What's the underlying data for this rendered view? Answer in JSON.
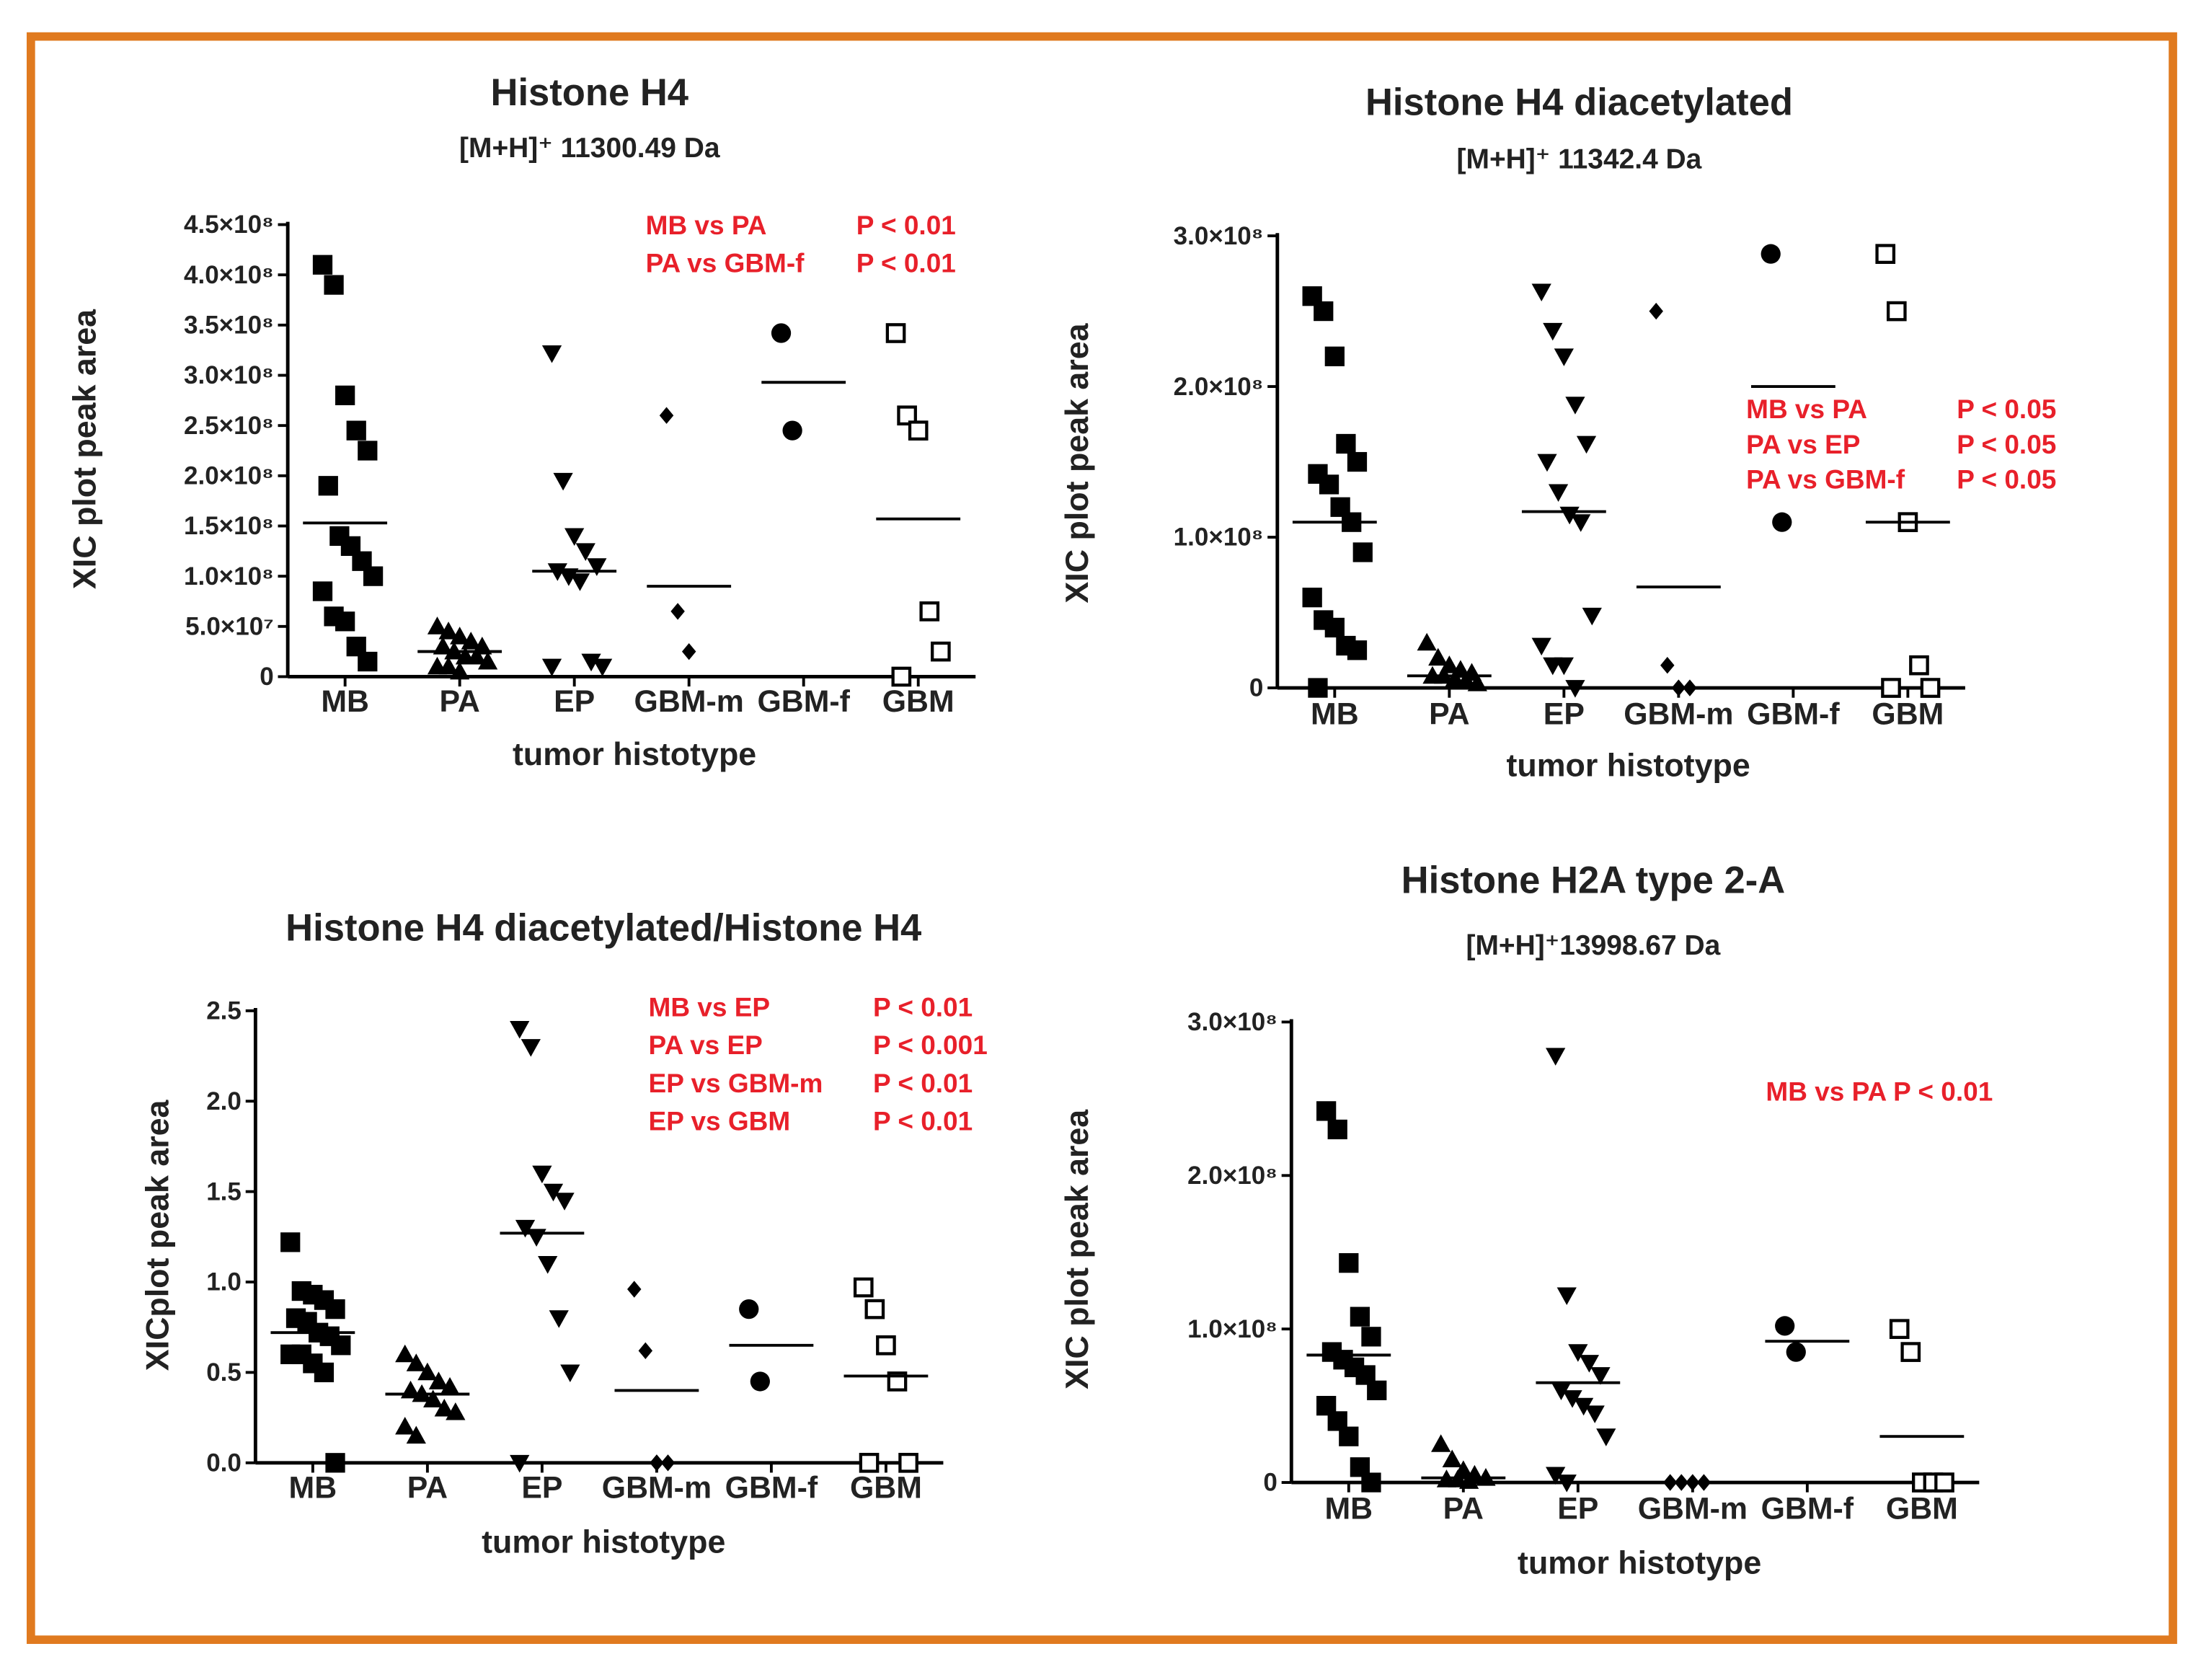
{
  "chart_data": [
    {
      "type": "strip",
      "title": "Histone H4",
      "subtitle": "[M+H]⁺ 11300.49 Da",
      "ylabel": "XIC plot peak area",
      "xlabel": "tumor histotype",
      "categories": [
        "MB",
        "PA",
        "EP",
        "GBM-m",
        "GBM-f",
        "GBM"
      ],
      "markers": [
        "square",
        "triangle",
        "triangle-down",
        "diamond",
        "circle",
        "open-square"
      ],
      "values": [
        [
          410000000.0,
          390000000.0,
          280000000.0,
          245000000.0,
          225000000.0,
          190000000.0,
          140000000.0,
          130000000.0,
          115000000.0,
          100000000.0,
          85000000.0,
          60000000.0,
          55000000.0,
          30000000.0,
          15000000.0
        ],
        [
          50000000.0,
          45000000.0,
          40000000.0,
          35000000.0,
          30000000.0,
          30000000.0,
          25000000.0,
          20000000.0,
          20000000.0,
          15000000.0,
          10000000.0,
          10000000.0,
          5000000.0
        ],
        [
          322000000.0,
          195000000.0,
          140000000.0,
          125000000.0,
          110000000.0,
          105000000.0,
          100000000.0,
          95000000.0,
          15000000.0,
          10000000.0,
          10000000.0
        ],
        [
          260000000.0,
          65000000.0,
          25000000.0
        ],
        [
          342000000.0,
          245000000.0
        ],
        [
          342000000.0,
          260000000.0,
          245000000.0,
          65000000.0,
          25000000.0,
          0
        ]
      ],
      "means": [
        153000000.0,
        25000000.0,
        105000000.0,
        90000000.0,
        293000000.0,
        157000000.0
      ],
      "ylim": [
        0,
        450000000.0
      ],
      "yticks": [
        0,
        {
          "value": 50000000.0,
          "label": "5.0×10⁷"
        },
        {
          "value": 100000000.0,
          "label": "1.0×10⁸"
        },
        {
          "value": 150000000.0,
          "label": "1.5×10⁸"
        },
        {
          "value": 200000000.0,
          "label": "2.0×10⁸"
        },
        {
          "value": 250000000.0,
          "label": "2.5×10⁸"
        },
        {
          "value": 300000000.0,
          "label": "3.0×10⁸"
        },
        {
          "value": 350000000.0,
          "label": "3.5×10⁸"
        },
        {
          "value": 400000000.0,
          "label": "4.0×10⁸"
        },
        {
          "value": 450000000.0,
          "label": "4.5×10⁸"
        }
      ],
      "annotations": [
        [
          "MB vs PA",
          "P < 0.01"
        ],
        [
          "PA vs GBM-f",
          "P < 0.01"
        ]
      ]
    },
    {
      "type": "strip",
      "title": "Histone H4 diacetylated",
      "subtitle": "[M+H]⁺ 11342.4  Da",
      "ylabel": "XIC plot peak area",
      "xlabel": "tumor histotype",
      "categories": [
        "MB",
        "PA",
        "EP",
        "GBM-m",
        "GBM-f",
        "GBM"
      ],
      "markers": [
        "square",
        "triangle",
        "triangle-down",
        "diamond",
        "circle",
        "open-square"
      ],
      "values": [
        [
          260000000.0,
          250000000.0,
          220000000.0,
          162000000.0,
          150000000.0,
          142000000.0,
          135000000.0,
          120000000.0,
          110000000.0,
          90000000.0,
          60000000.0,
          45000000.0,
          40000000.0,
          28000000.0,
          25000000.0,
          0
        ],
        [
          30000000.0,
          20000000.0,
          15000000.0,
          12000000.0,
          10000000.0,
          8000000.0,
          8000000.0,
          6000000.0,
          5000000.0,
          3000000.0
        ],
        [
          263000000.0,
          237000000.0,
          220000000.0,
          188000000.0,
          162000000.0,
          150000000.0,
          130000000.0,
          115000000.0,
          110000000.0,
          48000000.0,
          28000000.0,
          15000000.0,
          15000000.0,
          0
        ],
        [
          250000000.0,
          15000000.0,
          0,
          0
        ],
        [
          288000000.0,
          110000000.0
        ],
        [
          288000000.0,
          250000000.0,
          110000000.0,
          15000000.0,
          0,
          0
        ]
      ],
      "means": [
        110000000.0,
        8000000.0,
        117000000.0,
        67000000.0,
        200000000.0,
        110000000.0
      ],
      "ylim": [
        0,
        300000000.0
      ],
      "yticks": [
        0,
        {
          "value": 100000000.0,
          "label": "1.0×10⁸"
        },
        {
          "value": 200000000.0,
          "label": "2.0×10⁸"
        },
        {
          "value": 300000000.0,
          "label": "3.0×10⁸"
        }
      ],
      "annotations": [
        [
          "MB vs PA",
          "P < 0.05"
        ],
        [
          "PA vs EP",
          "P < 0.05"
        ],
        [
          "PA vs GBM-f",
          "P < 0.05"
        ]
      ]
    },
    {
      "type": "strip",
      "title": "Histone H4 diacetylated/Histone H4",
      "ylabel": "XICplot peak area",
      "xlabel": "tumor histotype",
      "categories": [
        "MB",
        "PA",
        "EP",
        "GBM-m",
        "GBM-f",
        "GBM"
      ],
      "markers": [
        "square",
        "triangle",
        "triangle-down",
        "diamond",
        "circle",
        "open-square"
      ],
      "values": [
        [
          1.22,
          0.95,
          0.93,
          0.9,
          0.85,
          0.8,
          0.78,
          0.72,
          0.7,
          0.65,
          0.6,
          0.6,
          0.55,
          0.5,
          0
        ],
        [
          0.6,
          0.55,
          0.5,
          0.45,
          0.42,
          0.4,
          0.38,
          0.35,
          0.3,
          0.28,
          0.2,
          0.15
        ],
        [
          2.4,
          2.3,
          1.6,
          1.5,
          1.45,
          1.3,
          1.25,
          1.1,
          0.8,
          0.5,
          0
        ],
        [
          0.96,
          0.62,
          0,
          0
        ],
        [
          0.85,
          0.45
        ],
        [
          0.97,
          0.85,
          0.65,
          0.45,
          0,
          0
        ]
      ],
      "means": [
        0.72,
        0.38,
        1.27,
        0.4,
        0.65,
        0.48
      ],
      "ylim": [
        0,
        2.5
      ],
      "yticks": [
        {
          "value": 0,
          "label": "0.0"
        },
        0.5,
        {
          "value": 1,
          "label": "1.0"
        },
        1.5,
        {
          "value": 2,
          "label": "2.0"
        },
        2.5
      ],
      "annotations": [
        [
          "MB vs EP",
          "P < 0.01"
        ],
        [
          "PA vs EP",
          "P < 0.001"
        ],
        [
          "EP vs GBM-m",
          "P < 0.01"
        ],
        [
          "EP vs GBM",
          "P < 0.01"
        ]
      ]
    },
    {
      "type": "strip",
      "title": "Histone H2A type 2-A",
      "subtitle": "[M+H]⁺13998.67 Da",
      "ylabel": "XIC plot peak area",
      "xlabel": "tumor histotype",
      "categories": [
        "MB",
        "PA",
        "EP",
        "GBM-m",
        "GBM-f",
        "GBM"
      ],
      "markers": [
        "square",
        "triangle",
        "triangle-down",
        "diamond",
        "circle",
        "open-square"
      ],
      "values": [
        [
          242000000.0,
          230000000.0,
          143000000.0,
          108000000.0,
          95000000.0,
          85000000.0,
          80000000.0,
          75000000.0,
          70000000.0,
          60000000.0,
          50000000.0,
          40000000.0,
          30000000.0,
          10000000.0,
          0
        ],
        [
          25000000.0,
          15000000.0,
          8000000.0,
          5000000.0,
          3000000.0,
          2000000.0,
          2000000.0,
          1000000.0
        ],
        [
          278000000.0,
          122000000.0,
          85000000.0,
          78000000.0,
          70000000.0,
          60000000.0,
          55000000.0,
          50000000.0,
          45000000.0,
          30000000.0,
          5000000.0,
          0
        ],
        [
          0,
          0,
          0,
          0
        ],
        [
          102000000.0,
          85000000.0
        ],
        [
          100000000.0,
          85000000.0,
          0,
          0,
          0
        ]
      ],
      "means": [
        83000000.0,
        3000000.0,
        65000000.0,
        null,
        92000000.0,
        30000000.0
      ],
      "ylim": [
        0,
        300000000.0
      ],
      "yticks": [
        0,
        {
          "value": 100000000.0,
          "label": "1.0×10⁸"
        },
        {
          "value": 200000000.0,
          "label": "2.0×10⁸"
        },
        {
          "value": 300000000.0,
          "label": "3.0×10⁸"
        }
      ],
      "annotations": [
        [
          "MB vs PA P < 0.01"
        ]
      ]
    }
  ]
}
